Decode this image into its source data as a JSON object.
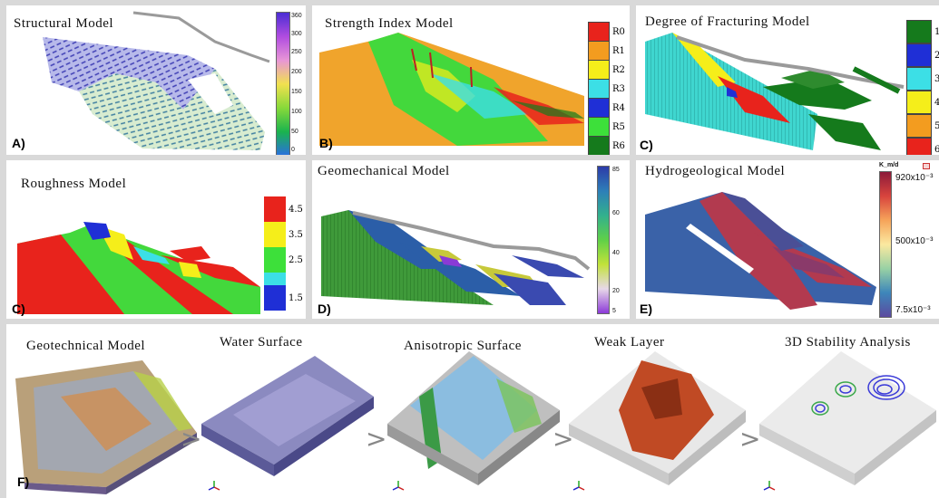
{
  "panels": {
    "structural": {
      "title": "Structural Model",
      "tag": "A)",
      "ticks": [
        "360",
        "300",
        "250",
        "200",
        "150",
        "100",
        "50",
        "0"
      ]
    },
    "strength": {
      "title": "Strength Index Model",
      "tag": "B)",
      "classes": [
        {
          "label": "R0",
          "color": "#e8231c"
        },
        {
          "label": "R1",
          "color": "#f39c1f"
        },
        {
          "label": "R2",
          "color": "#f5ee1a"
        },
        {
          "label": "R3",
          "color": "#3cdfe6"
        },
        {
          "label": "R4",
          "color": "#1f2fd6"
        },
        {
          "label": "R5",
          "color": "#3de03a"
        },
        {
          "label": "R6",
          "color": "#157a1c"
        }
      ]
    },
    "fracturing": {
      "title": "Degree of Fracturing Model",
      "tag": "C)",
      "classes": [
        {
          "label": "1",
          "color": "#157a1c"
        },
        {
          "label": "2",
          "color": "#1f2fd6"
        },
        {
          "label": "3",
          "color": "#3cdfe6"
        },
        {
          "label": "4",
          "color": "#f5ee1a"
        },
        {
          "label": "5",
          "color": "#f39c1f"
        },
        {
          "label": "6",
          "color": "#e8231c"
        }
      ]
    },
    "roughness": {
      "title": "Roughness Model",
      "tag": "C)",
      "classes": [
        {
          "label": "4.5",
          "color": "#e8231c"
        },
        {
          "label": "3.5",
          "color": "#f5ee1a"
        },
        {
          "label": "2.5",
          "color": "#3de03a"
        },
        {
          "label": "",
          "color": "#3cdfe6"
        },
        {
          "label": "1.5",
          "color": "#1f2fd6"
        }
      ]
    },
    "geomechanical": {
      "title": "Geomechanical Model",
      "tag": "D)",
      "ticks": [
        "85",
        "60",
        "40",
        "20",
        "5"
      ]
    },
    "hydrogeological": {
      "title": "Hydrogeological Model",
      "tag": "E)",
      "unit": "K_m/d",
      "ticks": [
        "920x10⁻³",
        "500x10⁻³",
        "7.5x10⁻³"
      ]
    },
    "workflow": {
      "tag": "F)",
      "steps": [
        "Geotechnical Model",
        "Water Surface",
        "Anisotropic Surface",
        "Weak Layer",
        "3D Stability Analysis"
      ],
      "separator": ">"
    }
  }
}
